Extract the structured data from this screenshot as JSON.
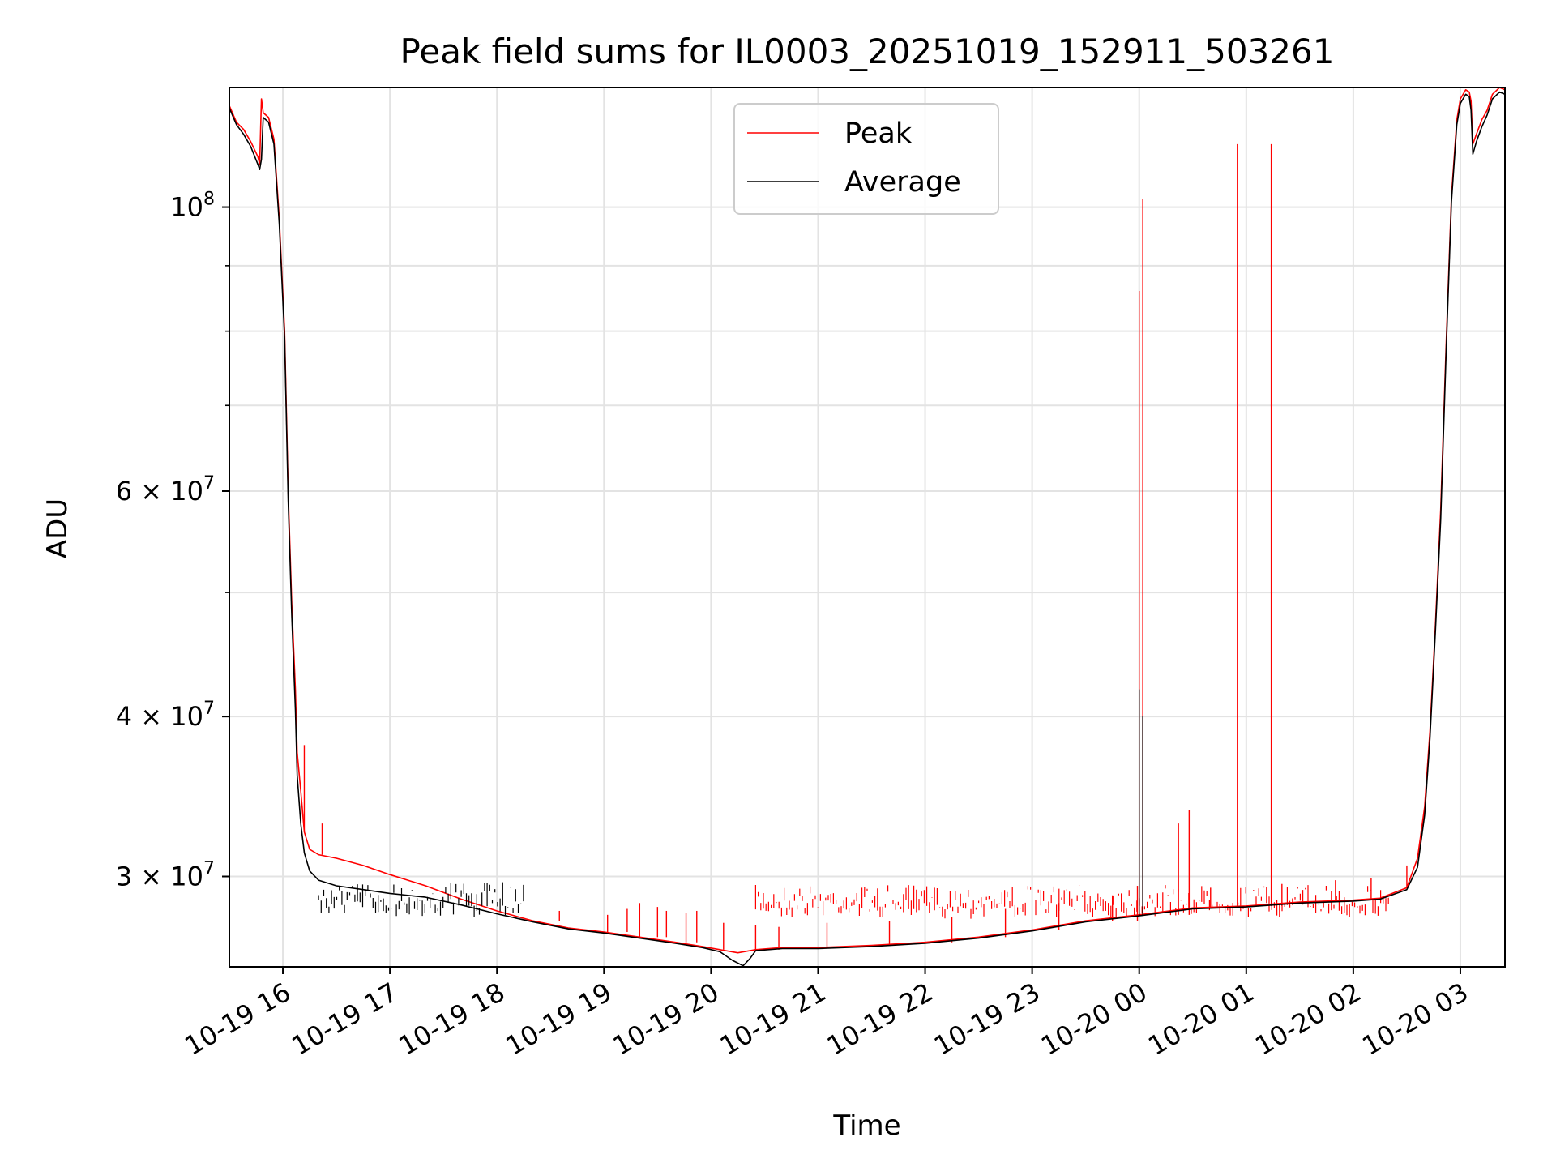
{
  "chart_data": {
    "type": "line",
    "title": "Peak field sums for IL0003_20251019_152911_503261",
    "xlabel": "Time",
    "ylabel": "ADU",
    "yscale": "log",
    "grid": true,
    "legend_position": "top-center",
    "xlim": [
      "2025-10-19 15:30",
      "2025-10-20 03:25"
    ],
    "ylim": [
      25500000,
      124000000
    ],
    "x_ticks": [
      {
        "t": "2025-10-19 16:00",
        "label": "10-19 16"
      },
      {
        "t": "2025-10-19 17:00",
        "label": "10-19 17"
      },
      {
        "t": "2025-10-19 18:00",
        "label": "10-19 18"
      },
      {
        "t": "2025-10-19 19:00",
        "label": "10-19 19"
      },
      {
        "t": "2025-10-19 20:00",
        "label": "10-19 20"
      },
      {
        "t": "2025-10-19 21:00",
        "label": "10-19 21"
      },
      {
        "t": "2025-10-19 22:00",
        "label": "10-19 22"
      },
      {
        "t": "2025-10-19 23:00",
        "label": "10-19 23"
      },
      {
        "t": "2025-10-20 00:00",
        "label": "10-20 00"
      },
      {
        "t": "2025-10-20 01:00",
        "label": "10-20 01"
      },
      {
        "t": "2025-10-20 02:00",
        "label": "10-20 02"
      },
      {
        "t": "2025-10-20 03:00",
        "label": "10-20 03"
      }
    ],
    "y_major_ticks": [
      {
        "v": 30000000,
        "base": "3 × 10",
        "exp": "7"
      },
      {
        "v": 40000000,
        "base": "4 × 10",
        "exp": "7"
      },
      {
        "v": 60000000,
        "base": "6 × 10",
        "exp": "7"
      },
      {
        "v": 100000000,
        "base": "10",
        "exp": "8"
      }
    ],
    "y_minor_ticks": [
      50000000,
      70000000,
      80000000,
      90000000
    ],
    "series": [
      {
        "name": "Peak",
        "color": "#ff0000",
        "points": [
          [
            "2025-10-19 15:30",
            120000000
          ],
          [
            "2025-10-19 15:34",
            116500000
          ],
          [
            "2025-10-19 15:38",
            115000000
          ],
          [
            "2025-10-19 15:42",
            112500000
          ],
          [
            "2025-10-19 15:46",
            109500000
          ],
          [
            "2025-10-19 15:47",
            108000000
          ],
          [
            "2025-10-19 15:48",
            121500000
          ],
          [
            "2025-10-19 15:49",
            118500000
          ],
          [
            "2025-10-19 15:52",
            117500000
          ],
          [
            "2025-10-19 15:55",
            113000000
          ],
          [
            "2025-10-19 15:58",
            98000000
          ],
          [
            "2025-10-19 16:01",
            80000000
          ],
          [
            "2025-10-19 16:03",
            60000000
          ],
          [
            "2025-10-19 16:05",
            49000000
          ],
          [
            "2025-10-19 16:07",
            42000000
          ],
          [
            "2025-10-19 16:08",
            37500000
          ],
          [
            "2025-10-19 16:10",
            35000000
          ],
          [
            "2025-10-19 16:12",
            32500000
          ],
          [
            "2025-10-19 16:15",
            31500000
          ],
          [
            "2025-10-19 16:20",
            31200000
          ],
          [
            "2025-10-19 16:30",
            31000000
          ],
          [
            "2025-10-19 16:45",
            30600000
          ],
          [
            "2025-10-19 17:00",
            30100000
          ],
          [
            "2025-10-19 17:20",
            29500000
          ],
          [
            "2025-10-19 17:40",
            28800000
          ],
          [
            "2025-10-19 18:00",
            28200000
          ],
          [
            "2025-10-19 18:20",
            27700000
          ],
          [
            "2025-10-19 18:40",
            27350000
          ],
          [
            "2025-10-19 19:00",
            27150000
          ],
          [
            "2025-10-19 19:20",
            26900000
          ],
          [
            "2025-10-19 19:40",
            26650000
          ],
          [
            "2025-10-19 19:55",
            26450000
          ],
          [
            "2025-10-19 20:05",
            26300000
          ],
          [
            "2025-10-19 20:15",
            26150000
          ],
          [
            "2025-10-19 20:25",
            26300000
          ],
          [
            "2025-10-19 20:40",
            26400000
          ],
          [
            "2025-10-19 21:00",
            26400000
          ],
          [
            "2025-10-19 21:30",
            26500000
          ],
          [
            "2025-10-19 22:00",
            26650000
          ],
          [
            "2025-10-19 22:30",
            26900000
          ],
          [
            "2025-10-19 23:00",
            27250000
          ],
          [
            "2025-10-19 23:30",
            27700000
          ],
          [
            "2025-10-20 00:00",
            28000000
          ],
          [
            "2025-10-20 00:30",
            28350000
          ],
          [
            "2025-10-20 01:00",
            28450000
          ],
          [
            "2025-10-20 01:30",
            28650000
          ],
          [
            "2025-10-20 02:00",
            28750000
          ],
          [
            "2025-10-20 02:15",
            28850000
          ],
          [
            "2025-10-20 02:30",
            29400000
          ],
          [
            "2025-10-20 02:36",
            31000000
          ],
          [
            "2025-10-20 02:40",
            34000000
          ],
          [
            "2025-10-20 02:43",
            39000000
          ],
          [
            "2025-10-20 02:46",
            47000000
          ],
          [
            "2025-10-20 02:49",
            58000000
          ],
          [
            "2025-10-20 02:52",
            78000000
          ],
          [
            "2025-10-20 02:55",
            102000000
          ],
          [
            "2025-10-20 02:58",
            117000000
          ],
          [
            "2025-10-20 03:00",
            121500000
          ],
          [
            "2025-10-20 03:03",
            123500000
          ],
          [
            "2025-10-20 03:05",
            123000000
          ],
          [
            "2025-10-20 03:06",
            121000000
          ],
          [
            "2025-10-20 03:07",
            112000000
          ],
          [
            "2025-10-20 03:09",
            114000000
          ],
          [
            "2025-10-20 03:12",
            117000000
          ],
          [
            "2025-10-20 03:15",
            119000000
          ],
          [
            "2025-10-20 03:18",
            122500000
          ],
          [
            "2025-10-20 03:22",
            124000000
          ],
          [
            "2025-10-20 03:25",
            123500000
          ]
        ],
        "spikes": [
          [
            "2025-10-20 00:00",
            86000000
          ],
          [
            "2025-10-20 00:02",
            101500000
          ],
          [
            "2025-10-19 23:59",
            29500000
          ],
          [
            "2025-10-20 00:22",
            33000000
          ],
          [
            "2025-10-20 00:28",
            33800000
          ],
          [
            "2025-10-20 00:55",
            112000000
          ],
          [
            "2025-10-20 01:14",
            112000000
          ],
          [
            "2025-10-19 16:12",
            38000000
          ],
          [
            "2025-10-19 16:22",
            33000000
          ],
          [
            "2025-10-19 18:35",
            28200000
          ],
          [
            "2025-10-19 19:02",
            28000000
          ],
          [
            "2025-10-19 19:13",
            28300000
          ],
          [
            "2025-10-19 19:20",
            28600000
          ],
          [
            "2025-10-19 19:30",
            28400000
          ],
          [
            "2025-10-19 19:35",
            28200000
          ],
          [
            "2025-10-19 19:46",
            28100000
          ],
          [
            "2025-10-19 19:52",
            28200000
          ],
          [
            "2025-10-19 20:07",
            27600000
          ],
          [
            "2025-10-19 20:25",
            27500000
          ],
          [
            "2025-10-19 20:38",
            27400000
          ],
          [
            "2025-10-19 21:05",
            27600000
          ],
          [
            "2025-10-19 21:40",
            27700000
          ],
          [
            "2025-10-19 22:15",
            27900000
          ],
          [
            "2025-10-19 22:45",
            28300000
          ],
          [
            "2025-10-19 23:15",
            28600000
          ],
          [
            "2025-10-19 23:45",
            29000000
          ],
          [
            "2025-10-20 00:40",
            29400000
          ],
          [
            "2025-10-20 01:20",
            29600000
          ],
          [
            "2025-10-20 01:50",
            29800000
          ],
          [
            "2025-10-20 02:10",
            29900000
          ],
          [
            "2025-10-20 02:30",
            30600000
          ]
        ],
        "noise_band": [
          [
            "2025-10-19 20:25",
            "2025-10-20 02:20",
            27600000,
            29900000
          ]
        ]
      },
      {
        "name": "Average",
        "color": "#000000",
        "points": [
          [
            "2025-10-19 15:30",
            119500000
          ],
          [
            "2025-10-19 15:34",
            116000000
          ],
          [
            "2025-10-19 15:38",
            114000000
          ],
          [
            "2025-10-19 15:42",
            111500000
          ],
          [
            "2025-10-19 15:46",
            108000000
          ],
          [
            "2025-10-19 15:47",
            107000000
          ],
          [
            "2025-10-19 15:48",
            109000000
          ],
          [
            "2025-10-19 15:49",
            117500000
          ],
          [
            "2025-10-19 15:52",
            116500000
          ],
          [
            "2025-10-19 15:55",
            112000000
          ],
          [
            "2025-10-19 15:58",
            97000000
          ],
          [
            "2025-10-19 16:01",
            79000000
          ],
          [
            "2025-10-19 16:03",
            59000000
          ],
          [
            "2025-10-19 16:05",
            48000000
          ],
          [
            "2025-10-19 16:07",
            40500000
          ],
          [
            "2025-10-19 16:08",
            36000000
          ],
          [
            "2025-10-19 16:10",
            33000000
          ],
          [
            "2025-10-19 16:12",
            31300000
          ],
          [
            "2025-10-19 16:15",
            30300000
          ],
          [
            "2025-10-19 16:20",
            29800000
          ],
          [
            "2025-10-19 16:30",
            29500000
          ],
          [
            "2025-10-19 16:45",
            29300000
          ],
          [
            "2025-10-19 17:00",
            29100000
          ],
          [
            "2025-10-19 17:20",
            28900000
          ],
          [
            "2025-10-19 17:40",
            28500000
          ],
          [
            "2025-10-19 18:00",
            28050000
          ],
          [
            "2025-10-19 18:20",
            27650000
          ],
          [
            "2025-10-19 18:40",
            27300000
          ],
          [
            "2025-10-19 19:00",
            27100000
          ],
          [
            "2025-10-19 19:20",
            26850000
          ],
          [
            "2025-10-19 19:40",
            26600000
          ],
          [
            "2025-10-19 19:55",
            26400000
          ],
          [
            "2025-10-19 20:05",
            26200000
          ],
          [
            "2025-10-19 20:12",
            25800000
          ],
          [
            "2025-10-19 20:18",
            25550000
          ],
          [
            "2025-10-19 20:22",
            25900000
          ],
          [
            "2025-10-19 20:25",
            26250000
          ],
          [
            "2025-10-19 20:40",
            26350000
          ],
          [
            "2025-10-19 21:00",
            26350000
          ],
          [
            "2025-10-19 21:30",
            26450000
          ],
          [
            "2025-10-19 22:00",
            26600000
          ],
          [
            "2025-10-19 22:30",
            26850000
          ],
          [
            "2025-10-19 23:00",
            27200000
          ],
          [
            "2025-10-19 23:30",
            27650000
          ],
          [
            "2025-10-20 00:00",
            27950000
          ],
          [
            "2025-10-20 00:30",
            28300000
          ],
          [
            "2025-10-20 01:00",
            28400000
          ],
          [
            "2025-10-20 01:30",
            28600000
          ],
          [
            "2025-10-20 02:00",
            28700000
          ],
          [
            "2025-10-20 02:15",
            28800000
          ],
          [
            "2025-10-20 02:30",
            29300000
          ],
          [
            "2025-10-20 02:36",
            30500000
          ],
          [
            "2025-10-20 02:40",
            33500000
          ],
          [
            "2025-10-20 02:43",
            38500000
          ],
          [
            "2025-10-20 02:46",
            46500000
          ],
          [
            "2025-10-20 02:49",
            57000000
          ],
          [
            "2025-10-20 02:52",
            77000000
          ],
          [
            "2025-10-20 02:55",
            101000000
          ],
          [
            "2025-10-20 02:58",
            116000000
          ],
          [
            "2025-10-20 03:00",
            120500000
          ],
          [
            "2025-10-20 03:03",
            122500000
          ],
          [
            "2025-10-20 03:05",
            122000000
          ],
          [
            "2025-10-20 03:06",
            119000000
          ],
          [
            "2025-10-20 03:07",
            110000000
          ],
          [
            "2025-10-20 03:09",
            112500000
          ],
          [
            "2025-10-20 03:12",
            115500000
          ],
          [
            "2025-10-20 03:15",
            118000000
          ],
          [
            "2025-10-20 03:18",
            121500000
          ],
          [
            "2025-10-20 03:22",
            123000000
          ],
          [
            "2025-10-20 03:25",
            122500000
          ]
        ],
        "spikes": [
          [
            "2025-10-20 00:00",
            42000000
          ],
          [
            "2025-10-20 00:02",
            40000000
          ]
        ],
        "noise_band": [
          [
            "2025-10-19 16:20",
            "2025-10-19 18:15",
            27600000,
            30100000
          ]
        ]
      }
    ]
  }
}
